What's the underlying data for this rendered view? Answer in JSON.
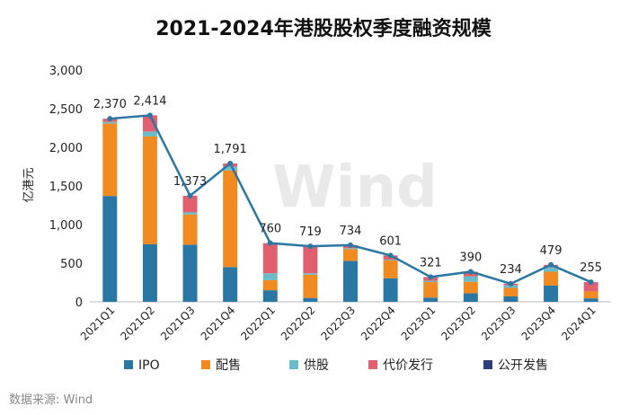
{
  "chart_data": {
    "type": "bar",
    "title": "2021-2024年港股股权季度融资规模",
    "xlabel": "",
    "ylabel": "亿港元",
    "ylim": [
      0,
      3000
    ],
    "yticks": [
      0,
      500,
      1000,
      1500,
      2000,
      2500,
      3000
    ],
    "ytick_labels": [
      "0",
      "500",
      "1,000",
      "1,500",
      "2,000",
      "2,500",
      "3,000"
    ],
    "categories": [
      "2021Q1",
      "2021Q2",
      "2021Q3",
      "2021Q4",
      "2022Q1",
      "2022Q2",
      "2022Q3",
      "2022Q4",
      "2023Q1",
      "2023Q2",
      "2023Q3",
      "2023Q4",
      "2024Q1"
    ],
    "stacked": true,
    "series": [
      {
        "name": "IPO",
        "color": "#2b77a4",
        "values": [
          1370,
          745,
          740,
          450,
          150,
          50,
          530,
          305,
          55,
          110,
          70,
          210,
          45
        ]
      },
      {
        "name": "配售",
        "color": "#f18a20",
        "values": [
          940,
          1395,
          390,
          1250,
          130,
          300,
          150,
          230,
          200,
          150,
          110,
          180,
          90
        ]
      },
      {
        "name": "供股",
        "color": "#6bbcc8",
        "values": [
          20,
          65,
          28,
          51,
          90,
          20,
          14,
          10,
          16,
          70,
          34,
          59,
          0
        ]
      },
      {
        "name": "代价发行",
        "color": "#e06070",
        "values": [
          40,
          209,
          215,
          40,
          390,
          349,
          40,
          56,
          50,
          60,
          20,
          30,
          120
        ]
      },
      {
        "name": "公开发售",
        "color": "#2f3e7a",
        "values": [
          0,
          0,
          0,
          0,
          0,
          0,
          0,
          0,
          0,
          0,
          0,
          0,
          0
        ]
      }
    ],
    "total_line": {
      "color": "#2b77a4",
      "values": [
        2370,
        2414,
        1373,
        1791,
        760,
        719,
        734,
        601,
        321,
        390,
        234,
        479,
        255
      ]
    },
    "total_labels": [
      "2,370",
      "2,414",
      "1,373",
      "1,791",
      "760",
      "719",
      "734",
      "601",
      "321",
      "390",
      "234",
      "479",
      "255"
    ],
    "legend_position": "bottom",
    "watermark": "Wind"
  },
  "source": "数据来源: Wind"
}
